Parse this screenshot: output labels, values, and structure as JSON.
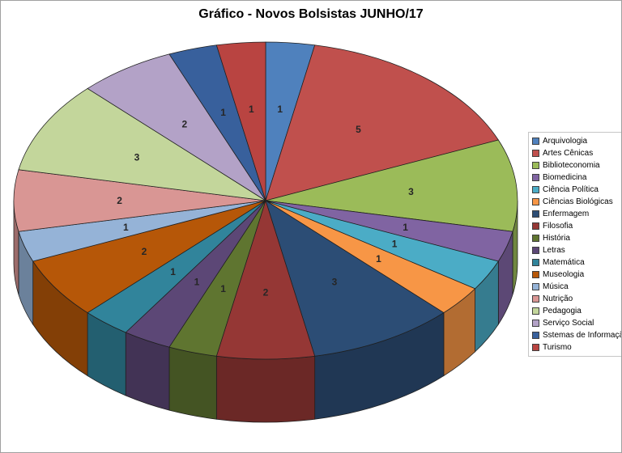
{
  "chart_data": {
    "type": "pie",
    "style": "3d",
    "title": "Gráfico - Novos Bolsistas JUNHO/17",
    "legend_position": "right",
    "data_labels": "value",
    "categories": [
      "Arquivologia",
      "Artes Cênicas",
      "Biblioteconomia",
      "Biomedicina",
      "Ciência Política",
      "Ciências Biológicas",
      "Enfermagem",
      "Filosofia",
      "História",
      "Letras",
      "Matemática",
      "Museologia",
      "Música",
      "Nutrição",
      "Pedagogia",
      "Serviço Social",
      "Sstemas de Informação",
      "Turismo"
    ],
    "values": [
      1,
      5,
      3,
      1,
      1,
      1,
      3,
      2,
      1,
      1,
      1,
      2,
      1,
      2,
      3,
      2,
      1,
      1
    ],
    "colors": [
      "#4F81BD",
      "#C0504D",
      "#9BBB59",
      "#8064A2",
      "#4BACC6",
      "#F79646",
      "#2C4D75",
      "#953735",
      "#5F7530",
      "#5C4776",
      "#31849B",
      "#B65708",
      "#95B3D7",
      "#D99694",
      "#C3D69B",
      "#B3A2C7",
      "#38609C",
      "#B94441"
    ]
  }
}
